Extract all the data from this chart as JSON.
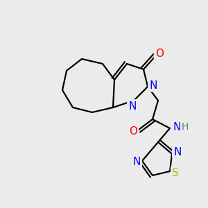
{
  "background_color": "#ebebeb",
  "atom_colors": {
    "C": "#000000",
    "N": "#0000ff",
    "O": "#ff0000",
    "S": "#b8b800",
    "H": "#5a8a5a"
  },
  "bond_color": "#000000",
  "bond_width": 1.6
}
